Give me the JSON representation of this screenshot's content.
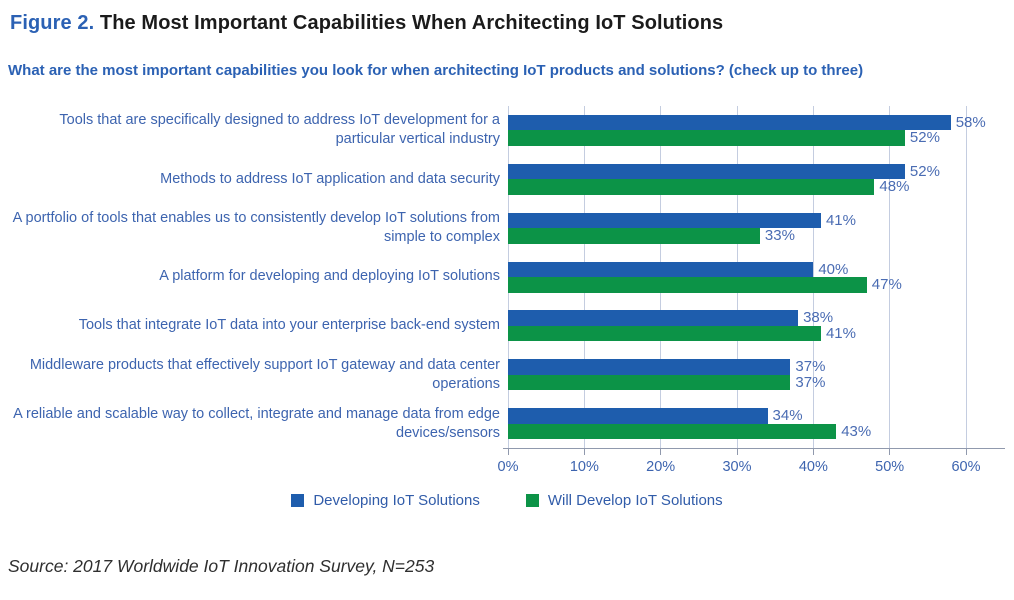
{
  "figure": {
    "label": "Figure 2.",
    "title": "The Most Important Capabilities When Architecting IoT Solutions",
    "question": "What are the most important capabilities you look for when architecting IoT products and solutions? (check up to three)",
    "source": "Source: 2017 Worldwide IoT Innovation Survey, N=253"
  },
  "colors": {
    "title_accent": "#2B61B4",
    "title_text": "#1B1B1B",
    "category_text": "#3D64AF",
    "value_label_text": "#4A6CB3",
    "gridline": "#C4CDE0",
    "axis_line": "#9099AD",
    "bar_blue": "#1E5DAD",
    "bar_green": "#0C9347"
  },
  "chart_data": {
    "type": "bar",
    "orientation": "horizontal",
    "title": "The Most Important Capabilities When Architecting IoT Solutions",
    "xlabel": "",
    "ylabel": "",
    "categories": [
      "Tools that are specifically designed to address IoT development for a particular vertical industry",
      "Methods to address IoT application and data security",
      "A portfolio of tools that enables us to consistently develop IoT solutions from simple to complex",
      "A platform for developing and deploying IoT solutions",
      "Tools that integrate IoT data into your enterprise back-end system",
      "Middleware products that effectively support IoT gateway and data center operations",
      "A reliable and scalable way to collect, integrate and manage data from edge devices/sensors"
    ],
    "series": [
      {
        "name": "Developing IoT Solutions",
        "color": "#1E5DAD",
        "values": [
          58,
          52,
          41,
          40,
          38,
          37,
          34
        ]
      },
      {
        "name": "Will Develop IoT Solutions",
        "color": "#0C9347",
        "values": [
          52,
          48,
          33,
          47,
          41,
          37,
          43
        ]
      }
    ],
    "xlim": [
      0,
      60
    ],
    "xticks": [
      0,
      10,
      20,
      30,
      40,
      50,
      60
    ],
    "xtick_labels": [
      "0%",
      "10%",
      "20%",
      "30%",
      "40%",
      "50%",
      "60%"
    ],
    "value_suffix": "%",
    "grid": true,
    "value_labels": true,
    "legend_position": "bottom"
  }
}
